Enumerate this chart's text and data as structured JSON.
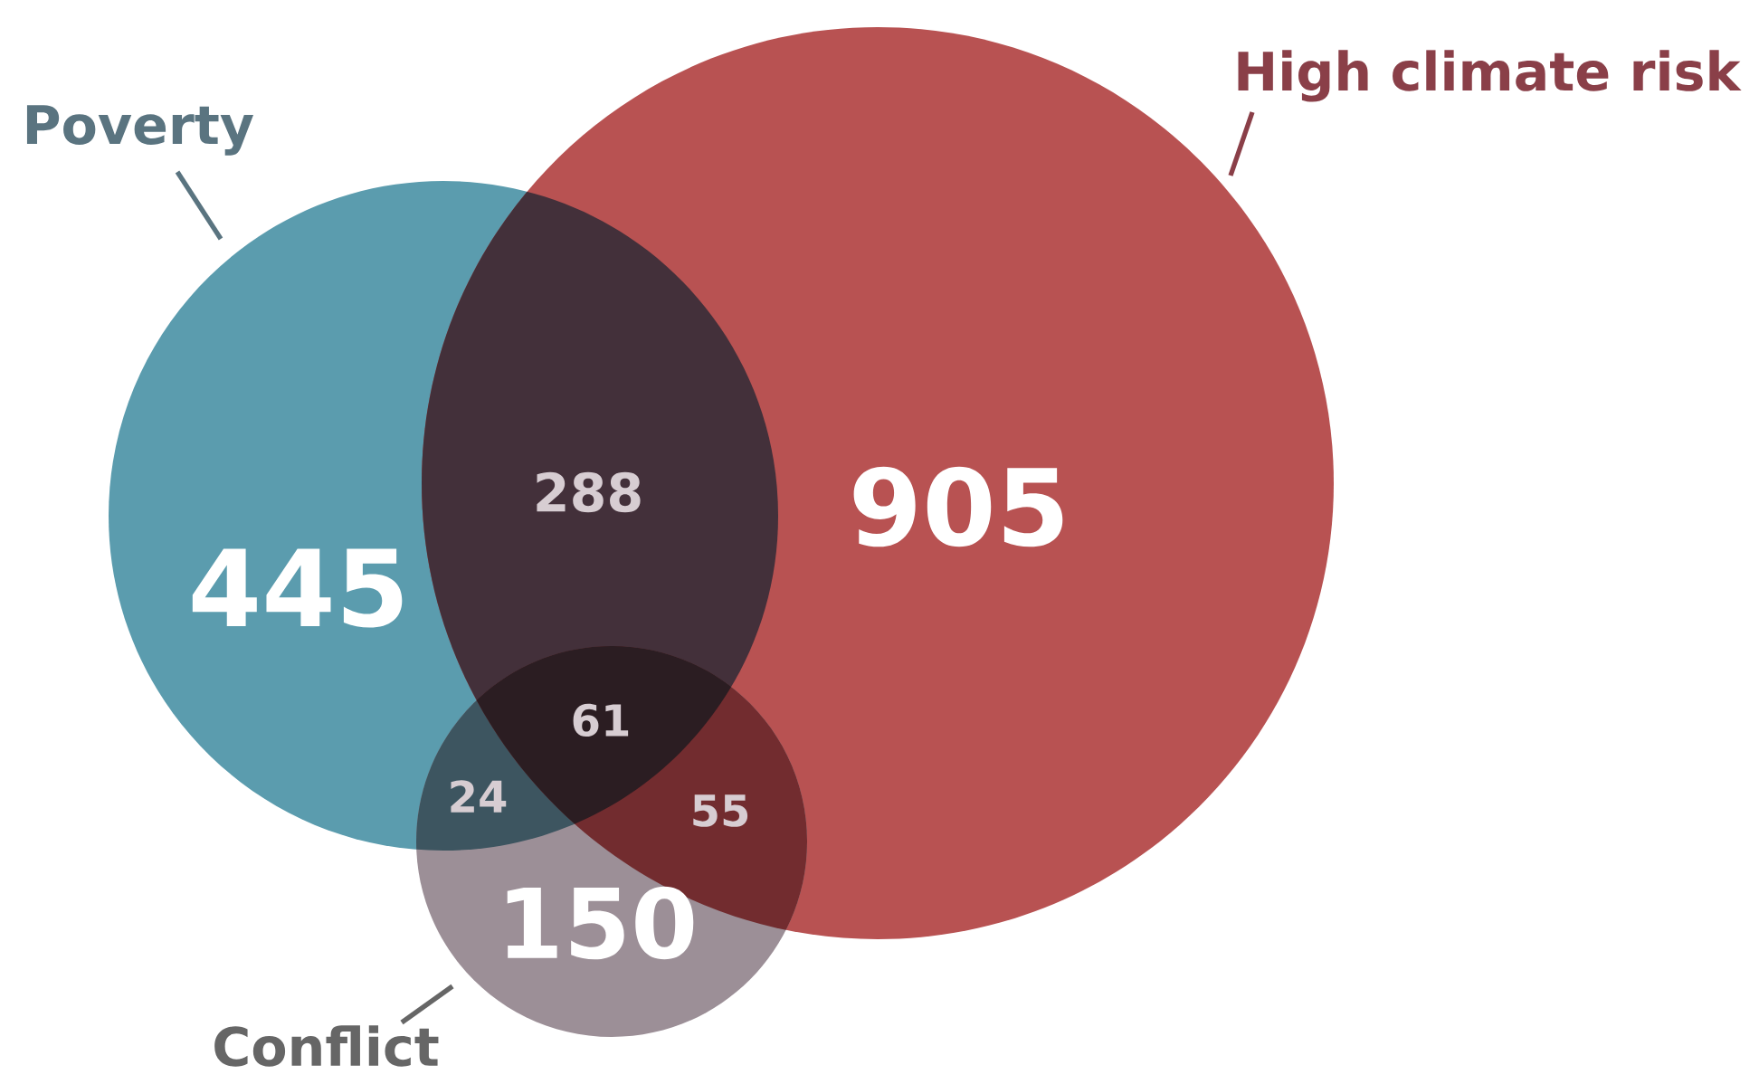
{
  "chart_data": {
    "type": "other",
    "categories": [
      "Poverty",
      "High climate risk",
      "Conflict"
    ],
    "colors": [
      "#5b9cae",
      "#b85252",
      "#9c8f97"
    ],
    "values": [
      445,
      905,
      150
    ],
    "data_labels": true,
    "annotations": [
      "288",
      "24",
      "55",
      "61"
    ]
  }
}
